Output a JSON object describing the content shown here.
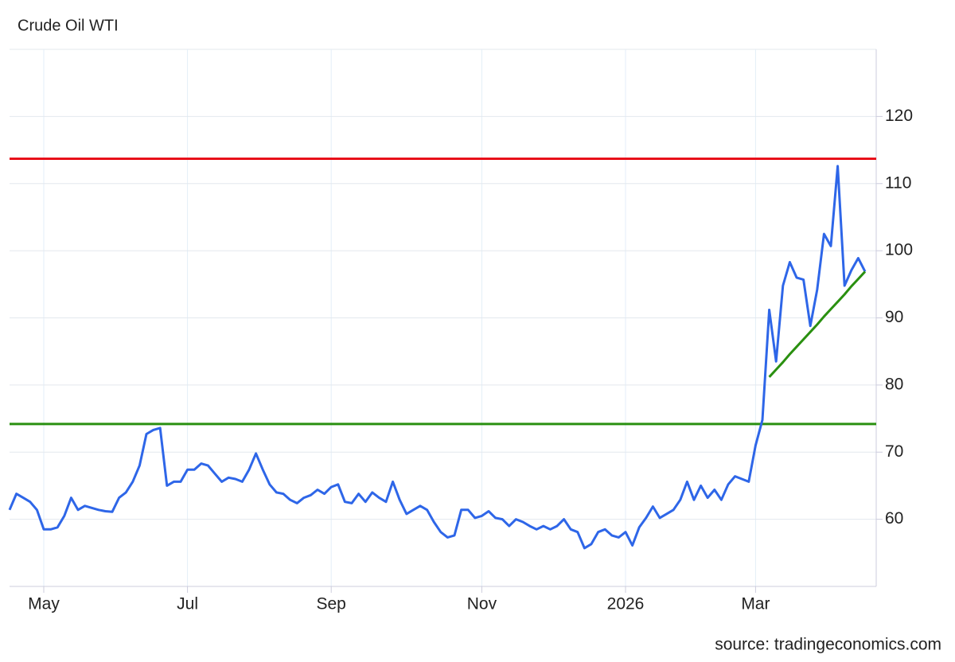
{
  "chart_data": {
    "type": "line",
    "title": "Crude Oil WTI",
    "source": "source: tradingeconomics.com",
    "categories": [
      null,
      null,
      null,
      null,
      null,
      "May",
      null,
      null,
      null,
      null,
      null,
      null,
      null,
      null,
      null,
      null,
      null,
      null,
      null,
      null,
      null,
      null,
      null,
      null,
      null,
      null,
      "Jul",
      null,
      null,
      null,
      null,
      null,
      null,
      null,
      null,
      null,
      null,
      null,
      null,
      null,
      null,
      null,
      null,
      null,
      null,
      null,
      null,
      "Sep",
      null,
      null,
      null,
      null,
      null,
      null,
      null,
      null,
      null,
      null,
      null,
      null,
      null,
      null,
      null,
      null,
      null,
      null,
      null,
      null,
      null,
      "Nov",
      null,
      null,
      null,
      null,
      null,
      null,
      null,
      null,
      null,
      null,
      null,
      null,
      null,
      null,
      null,
      null,
      null,
      null,
      null,
      null,
      "2026",
      null,
      null,
      null,
      null,
      null,
      null,
      null,
      null,
      null,
      null,
      null,
      null,
      null,
      null,
      null,
      null,
      null,
      null,
      "Mar",
      null,
      null,
      null,
      null,
      null,
      null,
      null,
      null,
      null,
      null,
      null,
      null,
      null,
      null,
      null,
      null
    ],
    "series": [
      {
        "color": "#2e66e8",
        "values": [
          61.4,
          63.8,
          63.2,
          62.6,
          61.4,
          58.5,
          58.5,
          58.8,
          60.5,
          63.2,
          61.4,
          62.0,
          61.7,
          61.4,
          61.2,
          61.1,
          63.2,
          64.0,
          65.6,
          68.0,
          72.7,
          73.3,
          73.6,
          65.0,
          65.6,
          65.6,
          67.4,
          67.4,
          68.3,
          68.0,
          66.8,
          65.6,
          66.2,
          66.0,
          65.6,
          67.4,
          69.8,
          67.4,
          65.2,
          64.0,
          63.8,
          62.9,
          62.4,
          63.2,
          63.6,
          64.4,
          63.8,
          64.8,
          65.2,
          62.6,
          62.4,
          63.8,
          62.6,
          64.0,
          63.2,
          62.6,
          65.6,
          62.9,
          60.8,
          61.4,
          62.0,
          61.4,
          59.6,
          58.1,
          57.3,
          57.6,
          61.4,
          61.4,
          60.2,
          60.5,
          61.2,
          60.2,
          60.0,
          59.0,
          60.0,
          59.6,
          59.0,
          58.5,
          59.0,
          58.5,
          59.0,
          60.0,
          58.5,
          58.1,
          55.7,
          56.3,
          58.1,
          58.5,
          57.6,
          57.3,
          58.1,
          56.1,
          58.8,
          60.2,
          61.9,
          60.2,
          60.8,
          61.4,
          62.9,
          65.6,
          62.9,
          65.0,
          63.2,
          64.4,
          62.9,
          65.2,
          66.4,
          66.0,
          65.6,
          71.0,
          74.8,
          91.2,
          83.5,
          94.8,
          98.3,
          96.0,
          95.7,
          88.8,
          94.2,
          102.5,
          100.7,
          112.6,
          94.8,
          97.1,
          98.9,
          96.9
        ]
      },
      {
        "color": "#2a9010",
        "values": [
          null,
          null,
          null,
          null,
          null,
          null,
          null,
          null,
          null,
          null,
          null,
          null,
          null,
          null,
          null,
          null,
          null,
          null,
          null,
          null,
          null,
          null,
          null,
          null,
          null,
          null,
          null,
          null,
          null,
          null,
          null,
          null,
          null,
          null,
          null,
          null,
          null,
          null,
          null,
          null,
          null,
          null,
          null,
          null,
          null,
          null,
          null,
          null,
          null,
          null,
          null,
          null,
          null,
          null,
          null,
          null,
          null,
          null,
          null,
          null,
          null,
          null,
          null,
          null,
          null,
          null,
          null,
          null,
          null,
          null,
          null,
          null,
          null,
          null,
          null,
          null,
          null,
          null,
          null,
          null,
          null,
          null,
          null,
          null,
          null,
          null,
          null,
          null,
          null,
          null,
          null,
          null,
          null,
          null,
          null,
          null,
          null,
          null,
          null,
          null,
          null,
          null,
          null,
          null,
          null,
          null,
          null,
          null,
          null,
          null,
          null,
          81.2,
          82.3,
          83.4,
          84.6,
          85.7,
          86.8,
          87.9,
          89.0,
          90.2,
          91.3,
          92.4,
          93.5,
          94.7,
          95.8,
          96.9
        ]
      }
    ],
    "reference_lines": [
      {
        "value": 113.7,
        "color": "#e8101a"
      },
      {
        "value": 74.2,
        "color": "#2a9010"
      }
    ],
    "ylim": [
      50,
      130
    ],
    "yticks": [
      60,
      70,
      80,
      90,
      100,
      110,
      120
    ],
    "grid": true
  }
}
